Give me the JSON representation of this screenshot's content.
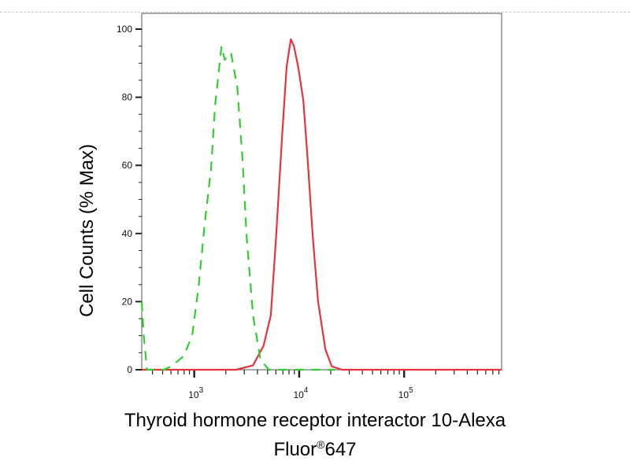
{
  "chart_data": {
    "type": "line",
    "title": "",
    "xlabel_line1": "Thyroid hormone receptor interactor 10-Alexa",
    "xlabel_line2_main": "Fluor",
    "xlabel_line2_sup": "®",
    "xlabel_line2_end": "647",
    "ylabel": "Cell Counts (% Max)",
    "x_scale": "log",
    "xlim": [
      316,
      850000
    ],
    "ylim": [
      0,
      100
    ],
    "grid": false,
    "x_ticks": [
      {
        "base": "10",
        "exp": "3",
        "value": 1000
      },
      {
        "base": "10",
        "exp": "4",
        "value": 10000
      },
      {
        "base": "10",
        "exp": "5",
        "value": 100000
      }
    ],
    "y_ticks": [
      "0",
      "20",
      "40",
      "60",
      "80",
      "100"
    ],
    "series": [
      {
        "color": "#e8333f",
        "style": "solid",
        "points": [
          [
            316,
            0
          ],
          [
            2500,
            0
          ],
          [
            3630,
            1.3
          ],
          [
            4570,
            7
          ],
          [
            5370,
            16
          ],
          [
            6030,
            39
          ],
          [
            6920,
            70
          ],
          [
            7590,
            89
          ],
          [
            8320,
            97
          ],
          [
            8910,
            95
          ],
          [
            9770,
            89
          ],
          [
            10960,
            79
          ],
          [
            12020,
            62
          ],
          [
            13490,
            39
          ],
          [
            15140,
            20
          ],
          [
            17780,
            6
          ],
          [
            20420,
            1
          ],
          [
            25700,
            0
          ],
          [
            850000,
            0
          ]
        ]
      },
      {
        "color": "#33cc33",
        "style": "dashed",
        "points": [
          [
            316,
            20
          ],
          [
            330,
            10
          ],
          [
            355,
            0
          ],
          [
            513,
            0
          ],
          [
            603,
            1
          ],
          [
            794,
            4
          ],
          [
            955,
            10
          ],
          [
            1096,
            24
          ],
          [
            1259,
            43
          ],
          [
            1445,
            59
          ],
          [
            1585,
            78
          ],
          [
            1820,
            95
          ],
          [
            1950,
            91
          ],
          [
            2240,
            93
          ],
          [
            2570,
            83
          ],
          [
            2880,
            62
          ],
          [
            3160,
            39
          ],
          [
            3630,
            16
          ],
          [
            4270,
            3
          ],
          [
            5130,
            0
          ],
          [
            22000,
            0
          ]
        ]
      }
    ]
  }
}
